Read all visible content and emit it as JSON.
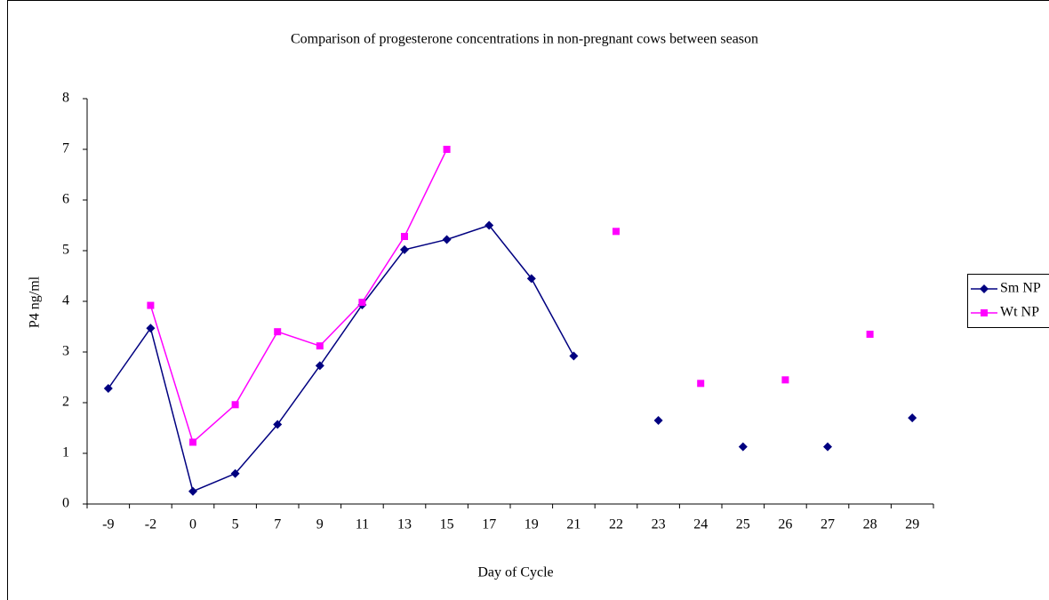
{
  "chart_data": {
    "type": "line",
    "title": "Comparison of progesterone concentrations in non-pregnant cows between season",
    "x_label": "Day of Cycle",
    "y_label": "P4 ng/ml",
    "categories": [
      "-9",
      "-2",
      "0",
      "5",
      "7",
      "9",
      "11",
      "13",
      "15",
      "17",
      "19",
      "21",
      "22",
      "23",
      "24",
      "25",
      "26",
      "27",
      "28",
      "29"
    ],
    "series": [
      {
        "name": "Sm NP",
        "color": "#000080",
        "marker": "diamond",
        "values": [
          2.28,
          3.47,
          0.25,
          0.6,
          1.57,
          2.73,
          3.93,
          5.02,
          5.22,
          5.5,
          4.45,
          2.92,
          null,
          1.65,
          null,
          1.13,
          null,
          1.13,
          null,
          1.7
        ]
      },
      {
        "name": "Wt NP",
        "color": "#ff00ff",
        "marker": "square",
        "values": [
          null,
          3.92,
          1.22,
          1.96,
          3.4,
          3.12,
          3.98,
          5.28,
          7.0,
          null,
          null,
          null,
          5.38,
          null,
          2.38,
          null,
          2.45,
          null,
          3.35,
          null
        ]
      }
    ],
    "ylim": [
      0,
      8
    ],
    "yticks": [
      0,
      1,
      2,
      3,
      4,
      5,
      6,
      7,
      8
    ],
    "grid": false,
    "legend": "right"
  }
}
